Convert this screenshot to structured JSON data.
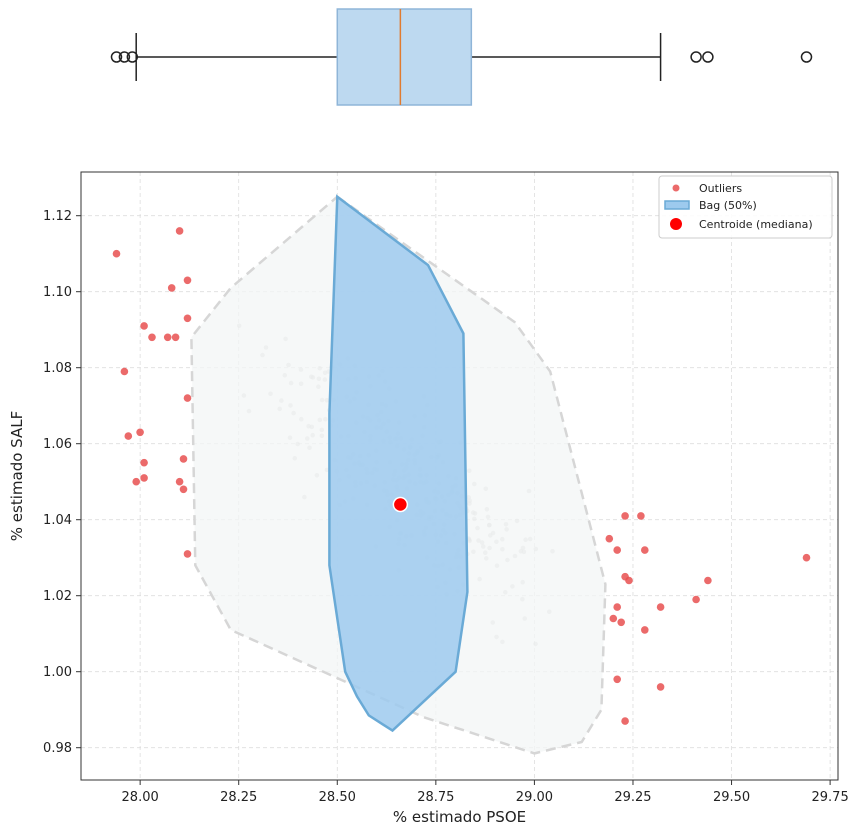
{
  "chart_data": [
    {
      "type": "box",
      "orientation": "horizontal",
      "xlim": [
        27.85,
        29.77
      ],
      "whisker_low": 27.99,
      "q1": 28.5,
      "median": 28.66,
      "q3": 28.84,
      "whisker_high": 29.32,
      "outliers": [
        27.94,
        27.96,
        27.98,
        29.41,
        29.44,
        29.69
      ],
      "box_color": "#bdd9f0",
      "box_edge": "#8fb5d8",
      "median_color": "#e07b30"
    },
    {
      "type": "scatter",
      "xlabel": "% estimado PSOE",
      "ylabel": "% estimado SALF",
      "xlim": [
        27.85,
        29.77
      ],
      "ylim": [
        0.9715,
        1.1315
      ],
      "xticks": [
        28.0,
        28.25,
        28.5,
        28.75,
        29.0,
        29.25,
        29.5,
        29.75
      ],
      "xtick_labels": [
        "28.00",
        "28.25",
        "28.50",
        "28.75",
        "29.00",
        "29.25",
        "29.50",
        "29.75"
      ],
      "yticks": [
        0.98,
        1.0,
        1.02,
        1.04,
        1.06,
        1.08,
        1.1,
        1.12
      ],
      "ytick_labels": [
        "0.98",
        "1.00",
        "1.02",
        "1.04",
        "1.06",
        "1.08",
        "1.10",
        "1.12"
      ],
      "grid": true,
      "legend_position": "top-right",
      "legend": [
        {
          "label": "Outliers",
          "marker": "dot",
          "color": "#e85050"
        },
        {
          "label": "Bag (50%)",
          "marker": "patch",
          "color": "#7fb8e0"
        },
        {
          "label": "Centroide (mediana)",
          "marker": "big-dot",
          "color": "#ff0000"
        }
      ],
      "fence": [
        [
          28.5,
          1.125
        ],
        [
          28.95,
          1.092
        ],
        [
          29.04,
          1.079
        ],
        [
          29.18,
          1.023
        ],
        [
          29.17,
          0.99
        ],
        [
          29.12,
          0.9815
        ],
        [
          29.0,
          0.9785
        ],
        [
          28.72,
          0.988
        ],
        [
          28.23,
          1.011
        ],
        [
          28.14,
          1.028
        ],
        [
          28.13,
          1.088
        ],
        [
          28.23,
          1.101
        ]
      ],
      "bag": [
        [
          28.5,
          1.125
        ],
        [
          28.73,
          1.107
        ],
        [
          28.82,
          1.089
        ],
        [
          28.83,
          1.021
        ],
        [
          28.8,
          1.0
        ],
        [
          28.64,
          0.9845
        ],
        [
          28.58,
          0.9885
        ],
        [
          28.55,
          0.9935
        ],
        [
          28.52,
          1.0
        ],
        [
          28.48,
          1.028
        ],
        [
          28.48,
          1.068
        ]
      ],
      "centroid": {
        "x": 28.66,
        "y": 1.044
      },
      "outliers": [
        {
          "x": 27.94,
          "y": 1.11
        },
        {
          "x": 28.1,
          "y": 1.116
        },
        {
          "x": 28.12,
          "y": 1.103
        },
        {
          "x": 28.08,
          "y": 1.101
        },
        {
          "x": 28.12,
          "y": 1.093
        },
        {
          "x": 28.01,
          "y": 1.091
        },
        {
          "x": 28.03,
          "y": 1.088
        },
        {
          "x": 28.07,
          "y": 1.088
        },
        {
          "x": 28.09,
          "y": 1.088
        },
        {
          "x": 27.96,
          "y": 1.079
        },
        {
          "x": 28.12,
          "y": 1.072
        },
        {
          "x": 28.0,
          "y": 1.063
        },
        {
          "x": 27.97,
          "y": 1.062
        },
        {
          "x": 28.11,
          "y": 1.056
        },
        {
          "x": 28.01,
          "y": 1.055
        },
        {
          "x": 28.01,
          "y": 1.051
        },
        {
          "x": 27.99,
          "y": 1.05
        },
        {
          "x": 28.1,
          "y": 1.05
        },
        {
          "x": 28.11,
          "y": 1.048
        },
        {
          "x": 28.12,
          "y": 1.031
        },
        {
          "x": 29.23,
          "y": 1.041
        },
        {
          "x": 29.27,
          "y": 1.041
        },
        {
          "x": 29.19,
          "y": 1.035
        },
        {
          "x": 29.21,
          "y": 1.032
        },
        {
          "x": 29.28,
          "y": 1.032
        },
        {
          "x": 29.69,
          "y": 1.03
        },
        {
          "x": 29.23,
          "y": 1.025
        },
        {
          "x": 29.24,
          "y": 1.024
        },
        {
          "x": 29.44,
          "y": 1.024
        },
        {
          "x": 29.41,
          "y": 1.019
        },
        {
          "x": 29.21,
          "y": 1.017
        },
        {
          "x": 29.32,
          "y": 1.017
        },
        {
          "x": 29.2,
          "y": 1.014
        },
        {
          "x": 29.22,
          "y": 1.013
        },
        {
          "x": 29.28,
          "y": 1.011
        },
        {
          "x": 29.21,
          "y": 0.998
        },
        {
          "x": 29.32,
          "y": 0.996
        },
        {
          "x": 29.23,
          "y": 0.987
        }
      ],
      "inlier_cloud": {
        "count": 320,
        "color": "#c4c4c4",
        "x_range": [
          28.2,
          29.15
        ],
        "y_center": 1.052,
        "y_slope": -0.07,
        "y_spread": 0.022
      },
      "colors": {
        "fence_fill": "#f3f5f6",
        "fence_stroke": "#d6d6d6",
        "bag_fill": "#9dcaee",
        "bag_stroke": "#6aaad6",
        "outlier": "#e85050",
        "centroid": "#ff0000",
        "grid": "#dddddd"
      }
    }
  ]
}
